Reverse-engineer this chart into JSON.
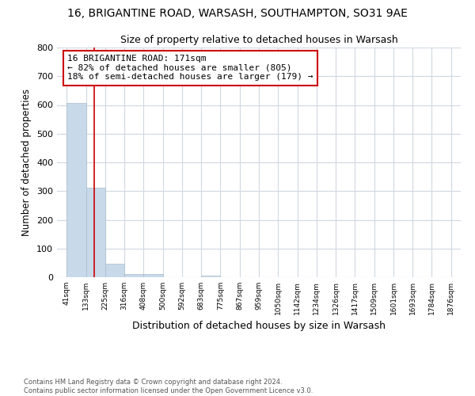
{
  "title_line1": "16, BRIGANTINE ROAD, WARSASH, SOUTHAMPTON, SO31 9AE",
  "title_line2": "Size of property relative to detached houses in Warsash",
  "xlabel": "Distribution of detached houses by size in Warsash",
  "ylabel": "Number of detached properties",
  "footnote": "Contains HM Land Registry data © Crown copyright and database right 2024.\nContains public sector information licensed under the Open Government Licence v3.0.",
  "bins": [
    41,
    133,
    225,
    316,
    408,
    500,
    592,
    683,
    775,
    867,
    959,
    1050,
    1142,
    1234,
    1326,
    1417,
    1509,
    1601,
    1693,
    1784,
    1876
  ],
  "bin_labels": [
    "41sqm",
    "133sqm",
    "225sqm",
    "316sqm",
    "408sqm",
    "500sqm",
    "592sqm",
    "683sqm",
    "775sqm",
    "867sqm",
    "959sqm",
    "1050sqm",
    "1142sqm",
    "1234sqm",
    "1326sqm",
    "1417sqm",
    "1509sqm",
    "1601sqm",
    "1693sqm",
    "1784sqm",
    "1876sqm"
  ],
  "counts": [
    608,
    311,
    48,
    11,
    12,
    0,
    0,
    5,
    0,
    0,
    0,
    0,
    0,
    0,
    0,
    0,
    0,
    0,
    0,
    0
  ],
  "bar_color": "#c8daea",
  "bar_edgecolor": "#aabbcc",
  "property_size": 171,
  "vline_color": "#cc0000",
  "annotation_text": "16 BRIGANTINE ROAD: 171sqm\n← 82% of detached houses are smaller (805)\n18% of semi-detached houses are larger (179) →",
  "annotation_box_color": "white",
  "annotation_box_edgecolor": "#cc0000",
  "ylim": [
    0,
    800
  ],
  "background_color": "white",
  "plot_bg_color": "white",
  "grid_color": "#d0d8e0",
  "yticks": [
    0,
    100,
    200,
    300,
    400,
    500,
    600,
    700,
    800
  ]
}
